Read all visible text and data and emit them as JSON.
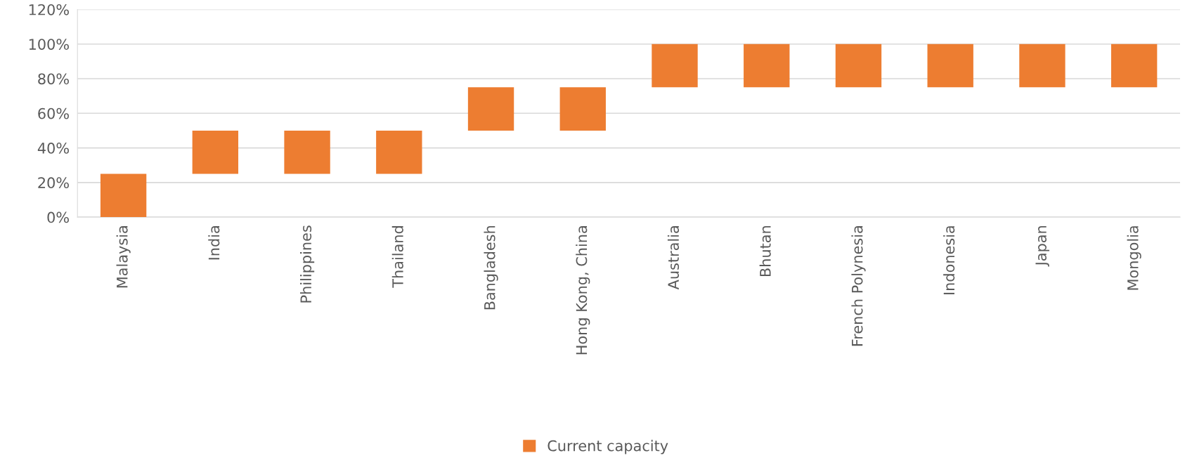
{
  "chart_data": {
    "type": "bar",
    "categories": [
      "Malaysia",
      "India",
      "Philippines",
      "Thailand",
      "Bangladesh",
      "Hong Kong, China",
      "Australia",
      "Bhutan",
      "French Polynesia",
      "Indonesia",
      "Japan",
      "Mongolia"
    ],
    "series": [
      {
        "name": "Current capacity",
        "color": "#ed7d31",
        "values": [
          25,
          25,
          25,
          25,
          25,
          25,
          25,
          25,
          25,
          25,
          25,
          25
        ],
        "base": [
          0,
          25,
          25,
          25,
          50,
          50,
          75,
          75,
          75,
          75,
          75,
          75
        ]
      }
    ],
    "ylim": [
      0,
      120
    ],
    "yticks": [
      {
        "value": 0,
        "label": "0%"
      },
      {
        "value": 20,
        "label": "20%"
      },
      {
        "value": 40,
        "label": "40%"
      },
      {
        "value": 60,
        "label": "60%"
      },
      {
        "value": 80,
        "label": "80%"
      },
      {
        "value": 100,
        "label": "100%"
      },
      {
        "value": 120,
        "label": "120%"
      }
    ],
    "grid": "y",
    "legend": "bottom"
  }
}
